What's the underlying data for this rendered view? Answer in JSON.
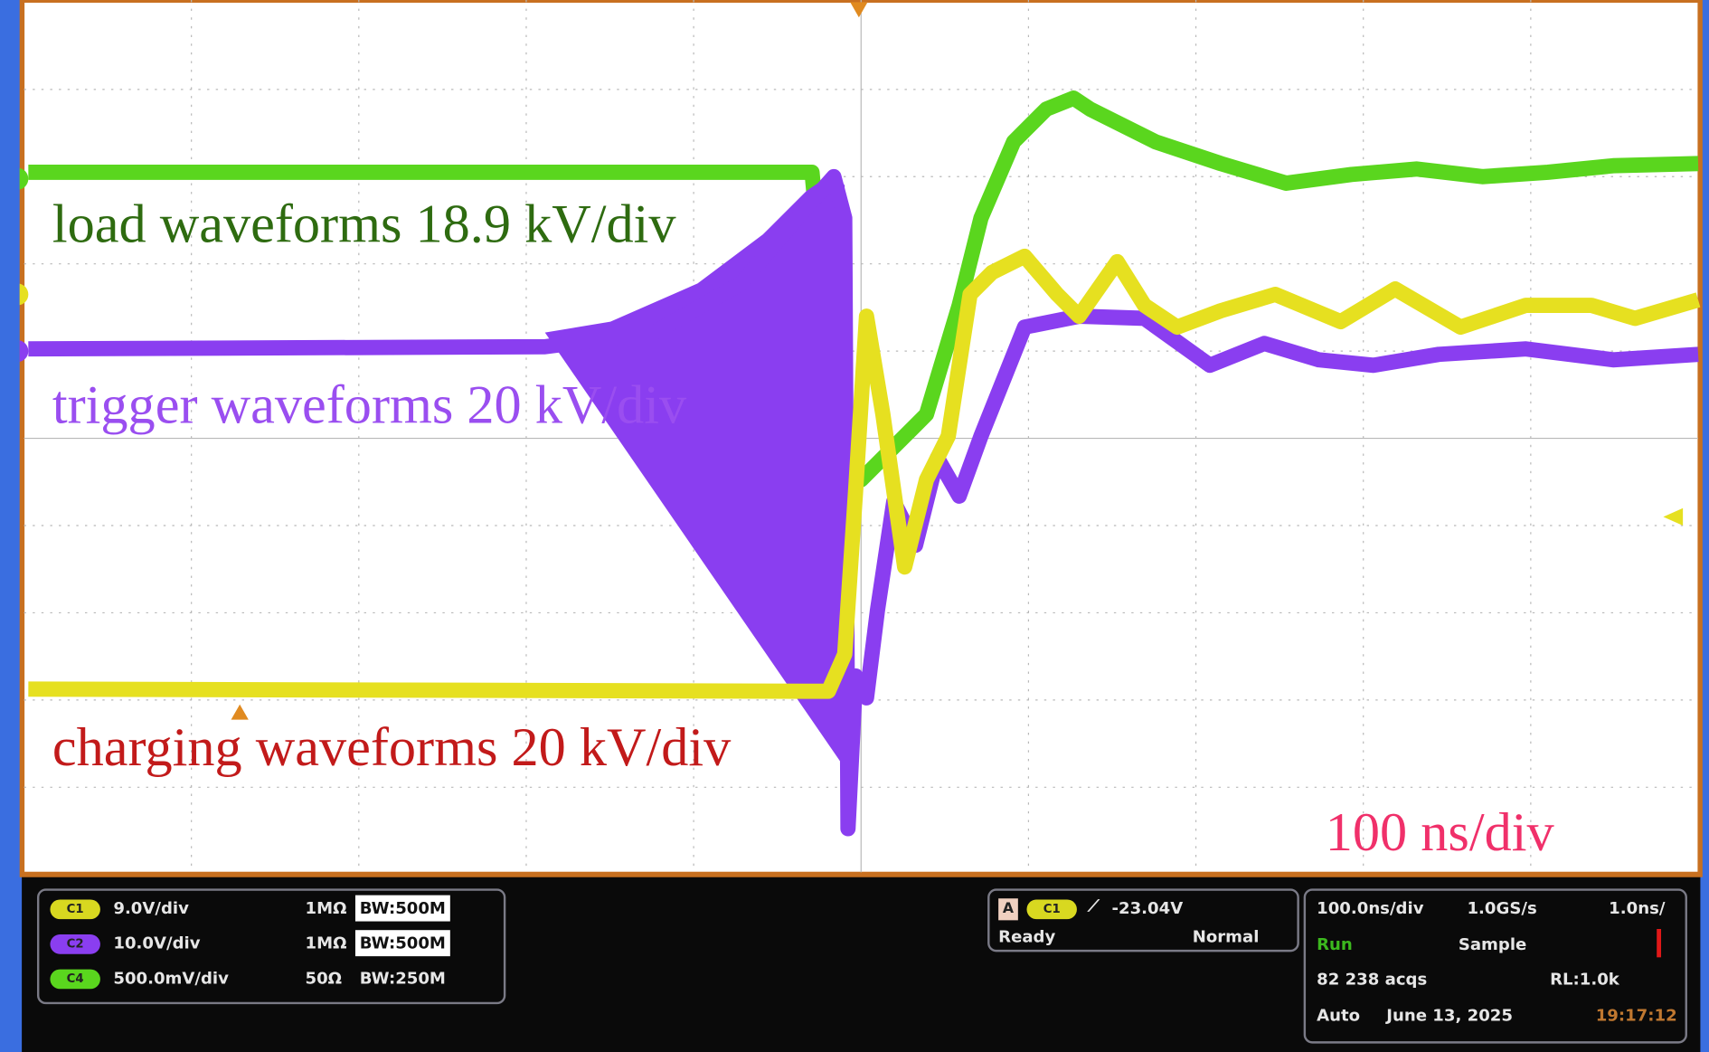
{
  "annotations": {
    "load": "load waveforms 18.9 kV/div",
    "trigger": "trigger waveforms 20 kV/div",
    "charging": "charging waveforms 20 kV/div",
    "timebase": "100 ns/div"
  },
  "colors": {
    "load": "#5ad61e",
    "trigger": "#8a3ef0",
    "charging": "#e6e020",
    "load_text": "#2e6b10",
    "trigger_text": "#9a4ef0",
    "charging_text": "#c21a1a",
    "timebase_text": "#f0306a",
    "frame": "#c87020"
  },
  "channels": [
    {
      "badge": "C1",
      "scale": "9.0V/div",
      "impedance": "1MΩ",
      "bandwidth": "BW:500M",
      "color": "#d8d820"
    },
    {
      "badge": "C2",
      "scale": "10.0V/div",
      "impedance": "1MΩ",
      "bandwidth": "BW:500M",
      "color": "#8a3ef0"
    },
    {
      "badge": "C4",
      "scale": "500.0mV/div",
      "impedance": "50Ω",
      "bandwidth": "BW:250M",
      "color": "#5ad61e"
    }
  ],
  "trigger": {
    "mode_badge": "A",
    "source": "C1",
    "level": "-23.04V",
    "state": "Ready",
    "type": "Normal"
  },
  "acquisition": {
    "timebase": "100.0ns/div",
    "sample_rate": "1.0GS/s",
    "resolution": "1.0ns/",
    "run_state": "Run",
    "mode": "Sample",
    "acqs": "82 238 acqs",
    "record_length": "RL:1.0k",
    "trigger_mode": "Auto",
    "date": "June 13, 2025",
    "time": "19:17:12"
  },
  "markers": {
    "ch4": "4",
    "ch1": "1",
    "ch2": "2"
  }
}
